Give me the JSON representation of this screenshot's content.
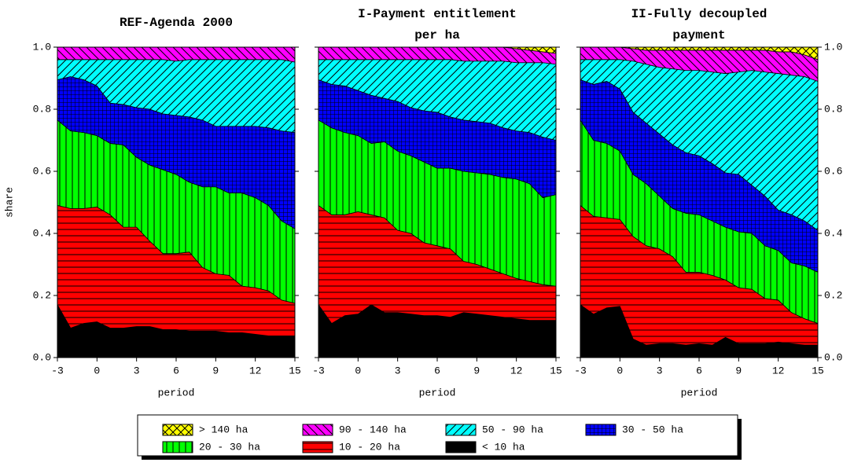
{
  "chart_data": [
    {
      "type": "stacked-area",
      "title": [
        "REF-Agenda 2000"
      ],
      "xlabel": "period",
      "ylabel": "share",
      "x": [
        -3,
        -2,
        -1,
        0,
        1,
        2,
        3,
        4,
        5,
        6,
        7,
        8,
        9,
        10,
        11,
        12,
        13,
        14,
        15
      ],
      "xlim": [
        -3,
        15
      ],
      "xticks": [
        -3,
        0,
        3,
        6,
        9,
        12,
        15
      ],
      "ylim": [
        0,
        1
      ],
      "yticks": [
        {
          "value": 0,
          "label": "0.0"
        },
        {
          "value": 0.2,
          "label": "0.2"
        },
        {
          "value": 0.4,
          "label": "0.4"
        },
        {
          "value": 0.6,
          "label": "0.6"
        },
        {
          "value": 0.8,
          "label": "0.8"
        },
        {
          "value": 1,
          "label": "1.0"
        }
      ],
      "series": [
        {
          "name": "< 10 ha",
          "color": "#000000",
          "hatch": "solid",
          "values": [
            0.17,
            0.095,
            0.11,
            0.115,
            0.095,
            0.095,
            0.1,
            0.1,
            0.09,
            0.09,
            0.085,
            0.085,
            0.085,
            0.08,
            0.08,
            0.075,
            0.07,
            0.07,
            0.07
          ]
        },
        {
          "name": "10 - 20 ha",
          "color": "#ff0000",
          "hatch": "horizontal",
          "values": [
            0.32,
            0.385,
            0.37,
            0.37,
            0.365,
            0.325,
            0.32,
            0.275,
            0.245,
            0.245,
            0.255,
            0.205,
            0.185,
            0.185,
            0.15,
            0.15,
            0.145,
            0.115,
            0.105
          ]
        },
        {
          "name": "20 - 30 ha",
          "color": "#00ff00",
          "hatch": "vertical",
          "values": [
            0.275,
            0.25,
            0.245,
            0.23,
            0.23,
            0.265,
            0.225,
            0.245,
            0.27,
            0.255,
            0.225,
            0.26,
            0.28,
            0.265,
            0.3,
            0.29,
            0.275,
            0.255,
            0.24
          ]
        },
        {
          "name": "30 - 50 ha",
          "color": "#0000ff",
          "hatch": "grid",
          "values": [
            0.13,
            0.175,
            0.17,
            0.16,
            0.13,
            0.13,
            0.16,
            0.18,
            0.18,
            0.19,
            0.21,
            0.215,
            0.195,
            0.215,
            0.215,
            0.23,
            0.25,
            0.29,
            0.31
          ]
        },
        {
          "name": "50 - 90 ha",
          "color": "#00ffff",
          "hatch": "diag",
          "values": [
            0.065,
            0.055,
            0.065,
            0.085,
            0.14,
            0.145,
            0.155,
            0.16,
            0.175,
            0.175,
            0.185,
            0.195,
            0.215,
            0.215,
            0.215,
            0.215,
            0.22,
            0.23,
            0.227
          ]
        },
        {
          "name": "90 - 140 ha",
          "color": "#ff00ff",
          "hatch": "diag-back",
          "values": [
            0.04,
            0.04,
            0.04,
            0.04,
            0.04,
            0.04,
            0.04,
            0.04,
            0.04,
            0.045,
            0.04,
            0.04,
            0.04,
            0.04,
            0.04,
            0.04,
            0.04,
            0.04,
            0.048
          ]
        },
        {
          "name": "> 140 ha",
          "color": "#ffff00",
          "hatch": "cross",
          "values": [
            0,
            0,
            0,
            0,
            0,
            0,
            0,
            0,
            0,
            0,
            0,
            0,
            0,
            0,
            0,
            0,
            0,
            0,
            0
          ]
        }
      ]
    },
    {
      "type": "stacked-area",
      "title": [
        "I-Payment entitlement",
        "per ha"
      ],
      "xlabel": "period",
      "x": [
        -3,
        -2,
        -1,
        0,
        1,
        2,
        3,
        4,
        5,
        6,
        7,
        8,
        9,
        10,
        11,
        12,
        13,
        14,
        15
      ],
      "xlim": [
        -3,
        15
      ],
      "xticks": [
        -3,
        0,
        3,
        6,
        9,
        12,
        15
      ],
      "ylim": [
        0,
        1
      ],
      "yticks": [
        0,
        0.2,
        0.4,
        0.6,
        0.8,
        1
      ],
      "series": [
        {
          "color": "#000000",
          "hatch": "solid",
          "values": [
            0.17,
            0.11,
            0.135,
            0.14,
            0.17,
            0.145,
            0.145,
            0.14,
            0.135,
            0.135,
            0.13,
            0.145,
            0.14,
            0.135,
            0.13,
            0.125,
            0.12,
            0.12,
            0.12
          ]
        },
        {
          "color": "#ff0000",
          "hatch": "horizontal",
          "values": [
            0.32,
            0.35,
            0.325,
            0.33,
            0.29,
            0.305,
            0.265,
            0.26,
            0.235,
            0.225,
            0.22,
            0.165,
            0.16,
            0.15,
            0.14,
            0.13,
            0.125,
            0.115,
            0.11
          ]
        },
        {
          "color": "#00ff00",
          "hatch": "vertical",
          "values": [
            0.275,
            0.28,
            0.265,
            0.245,
            0.23,
            0.245,
            0.255,
            0.25,
            0.26,
            0.25,
            0.26,
            0.29,
            0.295,
            0.305,
            0.31,
            0.32,
            0.315,
            0.28,
            0.295
          ]
        },
        {
          "color": "#0000ff",
          "hatch": "grid",
          "values": [
            0.13,
            0.14,
            0.15,
            0.145,
            0.155,
            0.14,
            0.16,
            0.155,
            0.165,
            0.18,
            0.165,
            0.165,
            0.165,
            0.165,
            0.16,
            0.155,
            0.165,
            0.195,
            0.175
          ]
        },
        {
          "color": "#00ffff",
          "hatch": "diag",
          "values": [
            0.065,
            0.08,
            0.085,
            0.1,
            0.115,
            0.125,
            0.135,
            0.155,
            0.165,
            0.17,
            0.185,
            0.19,
            0.195,
            0.2,
            0.215,
            0.22,
            0.225,
            0.24,
            0.245
          ]
        },
        {
          "color": "#ff00ff",
          "hatch": "diag-back",
          "values": [
            0.04,
            0.04,
            0.04,
            0.04,
            0.04,
            0.04,
            0.04,
            0.04,
            0.04,
            0.04,
            0.04,
            0.045,
            0.045,
            0.045,
            0.045,
            0.045,
            0.04,
            0.035,
            0.035
          ]
        },
        {
          "color": "#ffff00",
          "hatch": "cross",
          "values": [
            0,
            0,
            0,
            0,
            0,
            0,
            0,
            0,
            0,
            0,
            0,
            0,
            0,
            0,
            0,
            0.005,
            0.01,
            0.015,
            0.02
          ]
        }
      ]
    },
    {
      "type": "stacked-area",
      "title": [
        "II-Fully decoupled",
        "payment"
      ],
      "xlabel": "period",
      "x": [
        -3,
        -2,
        -1,
        0,
        1,
        2,
        3,
        4,
        5,
        6,
        7,
        8,
        9,
        10,
        11,
        12,
        13,
        14,
        15
      ],
      "xlim": [
        -3,
        15
      ],
      "xticks": [
        -3,
        0,
        3,
        6,
        9,
        12,
        15
      ],
      "ylim": [
        0,
        1
      ],
      "yticks": [
        {
          "value": 0,
          "label": "0.0"
        },
        {
          "value": 0.2,
          "label": "0.2"
        },
        {
          "value": 0.4,
          "label": "0.4"
        },
        {
          "value": 0.6,
          "label": "0.6"
        },
        {
          "value": 0.8,
          "label": "0.8"
        },
        {
          "value": 1,
          "label": "1.0"
        }
      ],
      "series": [
        {
          "color": "#000000",
          "hatch": "solid",
          "values": [
            0.17,
            0.14,
            0.16,
            0.165,
            0.06,
            0.04,
            0.045,
            0.045,
            0.04,
            0.045,
            0.04,
            0.065,
            0.045,
            0.045,
            0.045,
            0.05,
            0.045,
            0.04,
            0.04
          ]
        },
        {
          "color": "#ff0000",
          "hatch": "horizontal",
          "values": [
            0.32,
            0.315,
            0.29,
            0.28,
            0.33,
            0.32,
            0.305,
            0.28,
            0.235,
            0.23,
            0.225,
            0.185,
            0.18,
            0.175,
            0.145,
            0.135,
            0.1,
            0.085,
            0.07
          ]
        },
        {
          "color": "#00ff00",
          "hatch": "vertical",
          "values": [
            0.275,
            0.245,
            0.24,
            0.22,
            0.2,
            0.2,
            0.17,
            0.155,
            0.19,
            0.185,
            0.175,
            0.17,
            0.18,
            0.18,
            0.17,
            0.16,
            0.16,
            0.17,
            0.165
          ]
        },
        {
          "color": "#0000ff",
          "hatch": "grid",
          "values": [
            0.13,
            0.18,
            0.2,
            0.2,
            0.2,
            0.195,
            0.2,
            0.205,
            0.195,
            0.19,
            0.185,
            0.175,
            0.185,
            0.155,
            0.16,
            0.13,
            0.155,
            0.145,
            0.135
          ]
        },
        {
          "color": "#00ffff",
          "hatch": "diag",
          "values": [
            0.065,
            0.08,
            0.07,
            0.095,
            0.165,
            0.19,
            0.215,
            0.245,
            0.265,
            0.275,
            0.295,
            0.32,
            0.33,
            0.37,
            0.4,
            0.44,
            0.45,
            0.465,
            0.48
          ]
        },
        {
          "color": "#ff00ff",
          "hatch": "diag-back",
          "values": [
            0.04,
            0.04,
            0.04,
            0.04,
            0.04,
            0.045,
            0.055,
            0.06,
            0.065,
            0.065,
            0.07,
            0.075,
            0.07,
            0.065,
            0.07,
            0.07,
            0.075,
            0.07,
            0.07
          ]
        },
        {
          "color": "#ffff00",
          "hatch": "cross",
          "values": [
            0,
            0,
            0,
            0,
            0.005,
            0.01,
            0.01,
            0.01,
            0.01,
            0.01,
            0.01,
            0.01,
            0.01,
            0.01,
            0.01,
            0.015,
            0.015,
            0.025,
            0.04
          ]
        }
      ]
    }
  ]
}
